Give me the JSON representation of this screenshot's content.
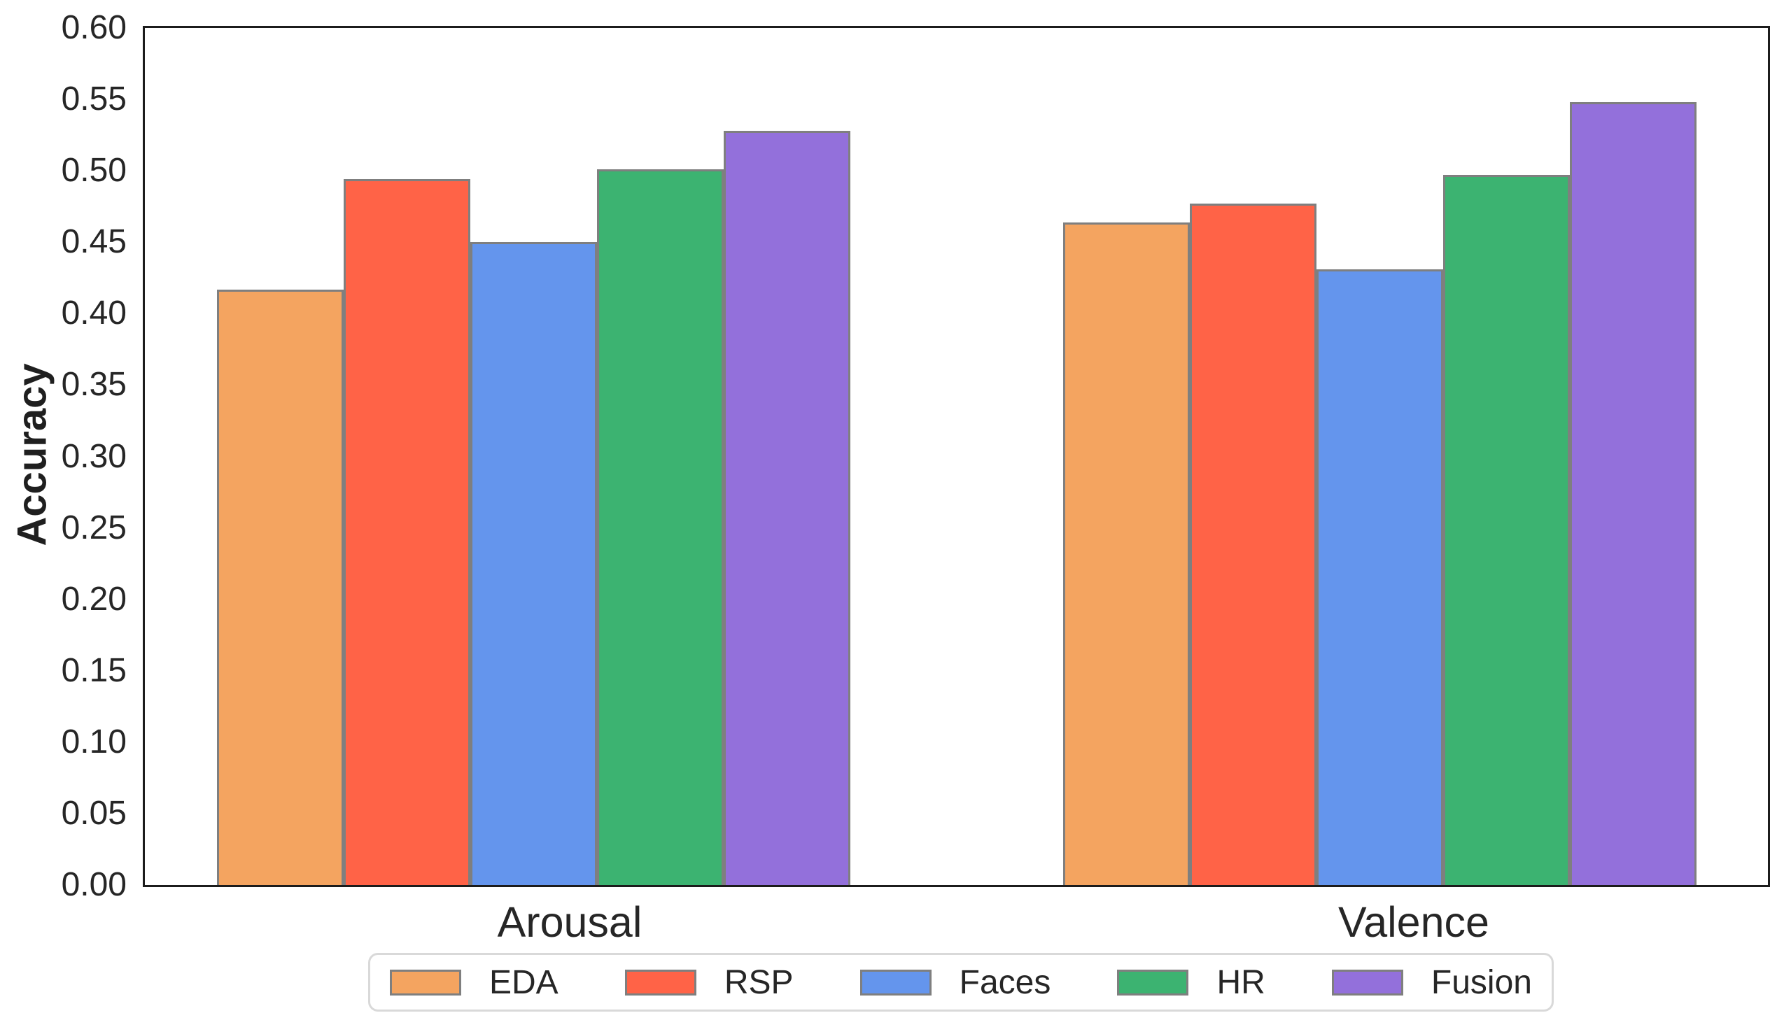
{
  "chart_data": {
    "type": "bar",
    "title": "",
    "xlabel": "",
    "ylabel": "Accuracy",
    "categories": [
      "Arousal",
      "Valence"
    ],
    "series": [
      {
        "name": "EDA",
        "color": "#F4A460",
        "values": [
          0.417,
          0.464
        ]
      },
      {
        "name": "RSP",
        "color": "#FF6347",
        "values": [
          0.494,
          0.477
        ]
      },
      {
        "name": "Faces",
        "color": "#6495ED",
        "values": [
          0.45,
          0.431
        ]
      },
      {
        "name": "HR",
        "color": "#3CB371",
        "values": [
          0.501,
          0.497
        ]
      },
      {
        "name": "Fusion",
        "color": "#9370DB",
        "values": [
          0.528,
          0.548
        ]
      }
    ],
    "ylim": [
      0.0,
      0.6
    ],
    "ytick_step": 0.05,
    "ytick_labels": [
      "0.00",
      "0.05",
      "0.10",
      "0.15",
      "0.20",
      "0.25",
      "0.30",
      "0.35",
      "0.40",
      "0.45",
      "0.50",
      "0.55",
      "0.60"
    ],
    "grid": false,
    "legend_position": "lower center, below axes",
    "bar_edge_color": "#7f7f7f",
    "spine_color": "#1c1c1c"
  }
}
